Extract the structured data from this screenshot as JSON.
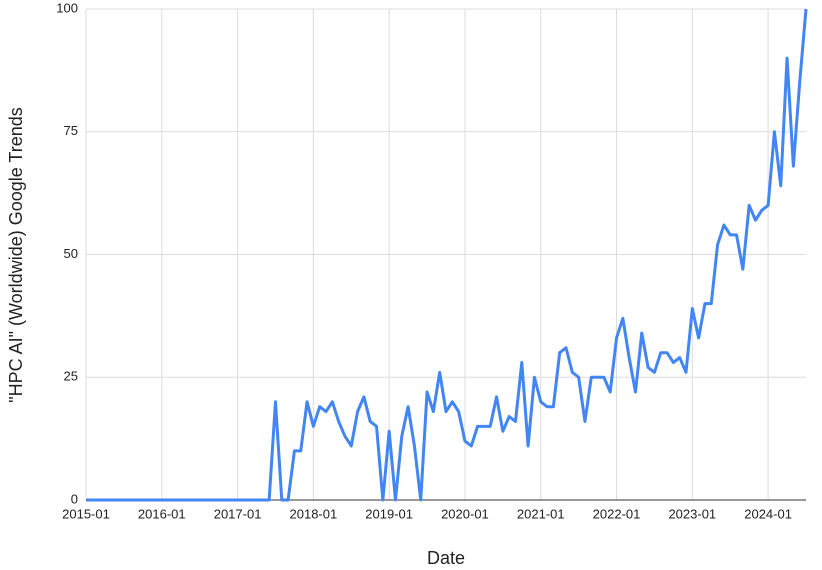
{
  "chart_data": {
    "type": "line",
    "x_label": "Date",
    "y_label": "\"HPC AI\" (Worldwide) Google Trends",
    "x": [
      "2015-01",
      "2015-02",
      "2015-03",
      "2015-04",
      "2015-05",
      "2015-06",
      "2015-07",
      "2015-08",
      "2015-09",
      "2015-10",
      "2015-11",
      "2015-12",
      "2016-01",
      "2016-02",
      "2016-03",
      "2016-04",
      "2016-05",
      "2016-06",
      "2016-07",
      "2016-08",
      "2016-09",
      "2016-10",
      "2016-11",
      "2016-12",
      "2017-01",
      "2017-02",
      "2017-03",
      "2017-04",
      "2017-05",
      "2017-06",
      "2017-07",
      "2017-08",
      "2017-09",
      "2017-10",
      "2017-11",
      "2017-12",
      "2018-01",
      "2018-02",
      "2018-03",
      "2018-04",
      "2018-05",
      "2018-06",
      "2018-07",
      "2018-08",
      "2018-09",
      "2018-10",
      "2018-11",
      "2018-12",
      "2019-01",
      "2019-02",
      "2019-03",
      "2019-04",
      "2019-05",
      "2019-06",
      "2019-07",
      "2019-08",
      "2019-09",
      "2019-10",
      "2019-11",
      "2019-12",
      "2020-01",
      "2020-02",
      "2020-03",
      "2020-04",
      "2020-05",
      "2020-06",
      "2020-07",
      "2020-08",
      "2020-09",
      "2020-10",
      "2020-11",
      "2020-12",
      "2021-01",
      "2021-02",
      "2021-03",
      "2021-04",
      "2021-05",
      "2021-06",
      "2021-07",
      "2021-08",
      "2021-09",
      "2021-10",
      "2021-11",
      "2021-12",
      "2022-01",
      "2022-02",
      "2022-03",
      "2022-04",
      "2022-05",
      "2022-06",
      "2022-07",
      "2022-08",
      "2022-09",
      "2022-10",
      "2022-11",
      "2022-12",
      "2023-01",
      "2023-02",
      "2023-03",
      "2023-04",
      "2023-05",
      "2023-06",
      "2023-07",
      "2023-08",
      "2023-09",
      "2023-10",
      "2023-11",
      "2023-12",
      "2024-01",
      "2024-02",
      "2024-03",
      "2024-04",
      "2024-05",
      "2024-06",
      "2024-07"
    ],
    "series": [
      {
        "name": "HPC AI",
        "color": "#4285f4",
        "values": [
          0,
          0,
          0,
          0,
          0,
          0,
          0,
          0,
          0,
          0,
          0,
          0,
          0,
          0,
          0,
          0,
          0,
          0,
          0,
          0,
          0,
          0,
          0,
          0,
          0,
          0,
          0,
          0,
          0,
          0,
          20,
          0,
          0,
          10,
          10,
          20,
          15,
          19,
          18,
          20,
          16,
          13,
          11,
          18,
          21,
          16,
          15,
          0,
          14,
          0,
          13,
          19,
          11,
          0,
          22,
          18,
          26,
          18,
          20,
          18,
          12,
          11,
          15,
          15,
          15,
          21,
          14,
          17,
          16,
          28,
          11,
          25,
          20,
          19,
          19,
          30,
          31,
          26,
          25,
          16,
          25,
          25,
          25,
          22,
          33,
          37,
          29,
          22,
          34,
          27,
          26,
          30,
          30,
          28,
          29,
          26,
          39,
          33,
          40,
          40,
          52,
          56,
          54,
          54,
          47,
          60,
          57,
          59,
          60,
          75,
          64,
          90,
          68,
          85,
          100
        ]
      }
    ],
    "xlim": [
      "2015-01",
      "2024-07"
    ],
    "xticks": [
      "2015-01",
      "2016-01",
      "2017-01",
      "2018-01",
      "2019-01",
      "2020-01",
      "2021-01",
      "2022-01",
      "2023-01",
      "2024-01"
    ],
    "ylim": [
      0,
      100
    ],
    "yticks": [
      0,
      25,
      50,
      75,
      100
    ],
    "grid": true
  }
}
